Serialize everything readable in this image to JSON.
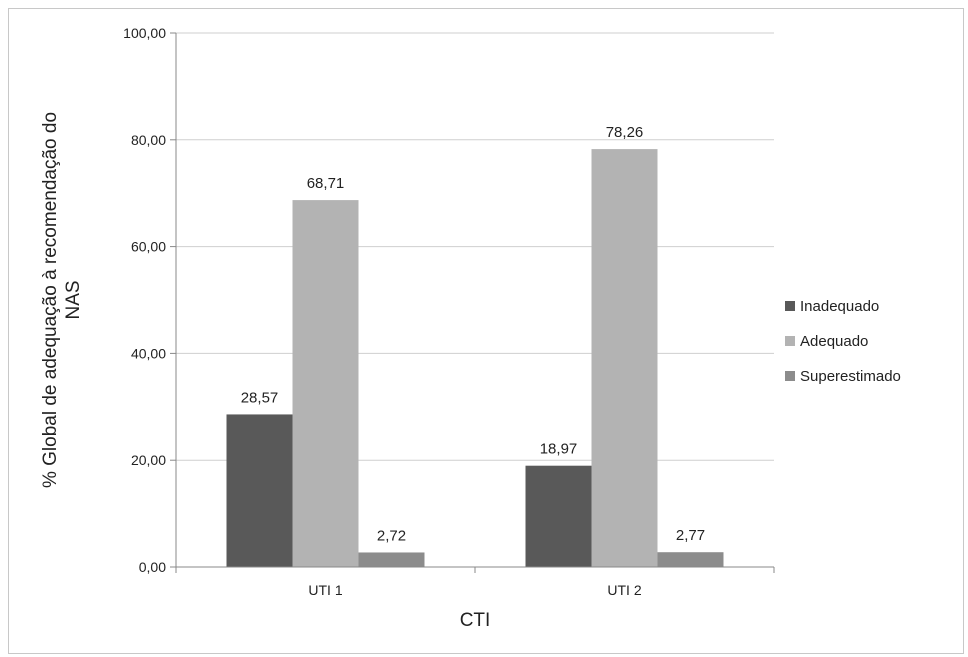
{
  "chart_data": {
    "type": "bar",
    "categories": [
      "UTI 1",
      "UTI 2"
    ],
    "series": [
      {
        "name": "Inadequado",
        "values": [
          28.57,
          18.97
        ],
        "labels": [
          "28,57",
          "18,97"
        ],
        "color": "#595959"
      },
      {
        "name": "Adequado",
        "values": [
          68.71,
          78.26
        ],
        "labels": [
          "68,71",
          "78,26"
        ],
        "color": "#b3b3b3"
      },
      {
        "name": "Superestimado",
        "values": [
          2.72,
          2.77
        ],
        "labels": [
          "2,72",
          "2,77"
        ],
        "color": "#8c8c8c"
      }
    ],
    "xlabel": "CTI",
    "ylabel_lines": [
      "% Global de adequação à recomendação do",
      "NAS"
    ],
    "ylim": [
      0,
      100
    ],
    "yticks": [
      0,
      20,
      40,
      60,
      80,
      100
    ],
    "ytick_labels": [
      "0,00",
      "20,00",
      "40,00",
      "60,00",
      "80,00",
      "100,00"
    ],
    "grid": true,
    "legend_position": "right"
  }
}
